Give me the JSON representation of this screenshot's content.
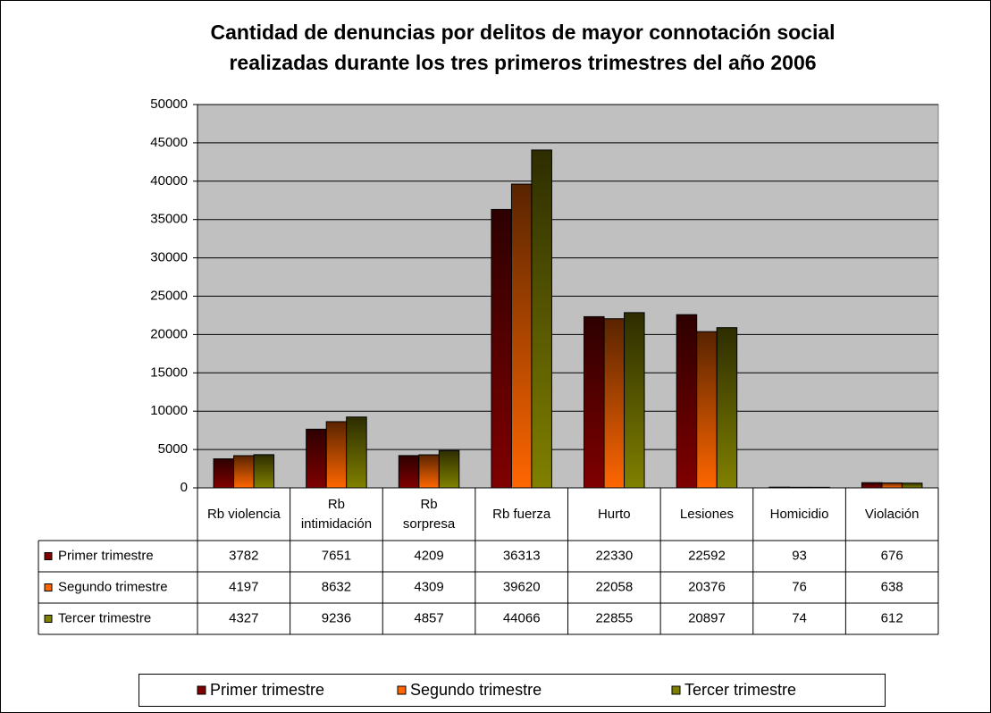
{
  "chart_data": {
    "type": "bar",
    "title": "Cantidad de denuncias por delitos de mayor connotación social realizadas durante los tres primeros trimestres del año 2006",
    "categories": [
      "Rb violencia",
      "Rb intimidación",
      "Rb sorpresa",
      "Rb fuerza",
      "Hurto",
      "Lesiones",
      "Homicidio",
      "Violación"
    ],
    "series": [
      {
        "name": "Primer trimestre",
        "color": "#800000",
        "values": [
          3782,
          7651,
          4209,
          36313,
          22330,
          22592,
          93,
          676
        ]
      },
      {
        "name": "Segundo trimestre",
        "color": "#ff6600",
        "values": [
          4197,
          8632,
          4309,
          39620,
          22058,
          20376,
          76,
          638
        ]
      },
      {
        "name": "Tercer trimestre",
        "color": "#808000",
        "values": [
          4327,
          9236,
          4857,
          44066,
          22855,
          20897,
          74,
          612
        ]
      }
    ],
    "ylim": [
      0,
      50000
    ],
    "yticks": [
      0,
      5000,
      10000,
      15000,
      20000,
      25000,
      30000,
      35000,
      40000,
      45000,
      50000
    ],
    "grid": true
  }
}
